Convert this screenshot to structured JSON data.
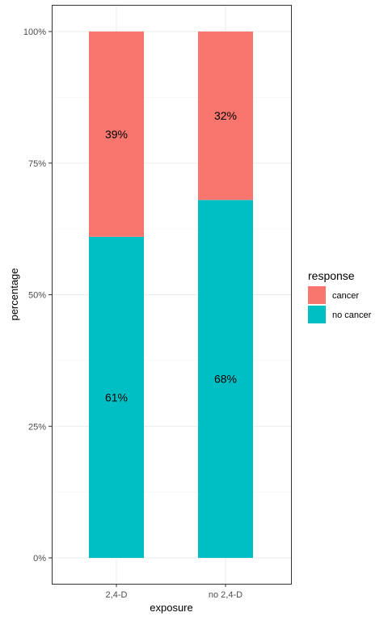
{
  "chart_data": {
    "type": "bar",
    "stacked": true,
    "categories": [
      "2,4-D",
      "no 2,4-D"
    ],
    "series": [
      {
        "name": "no cancer",
        "values": [
          61,
          68
        ],
        "labels": [
          "61%",
          "68%"
        ],
        "color": "#00BFC4"
      },
      {
        "name": "cancer",
        "values": [
          39,
          32
        ],
        "labels": [
          "39%",
          "32%"
        ],
        "color": "#F8766D"
      }
    ],
    "xlabel": "exposure",
    "ylabel": "percentage",
    "ylim": [
      0,
      100
    ],
    "yticks": [
      0,
      25,
      50,
      75,
      100
    ],
    "ytick_labels": [
      "0%",
      "25%",
      "50%",
      "75%",
      "100%"
    ],
    "grid": true,
    "legend": {
      "title": "response",
      "position": "right",
      "entries": [
        {
          "name": "cancer",
          "color": "#F8766D"
        },
        {
          "name": "no cancer",
          "color": "#00BFC4"
        }
      ]
    }
  }
}
